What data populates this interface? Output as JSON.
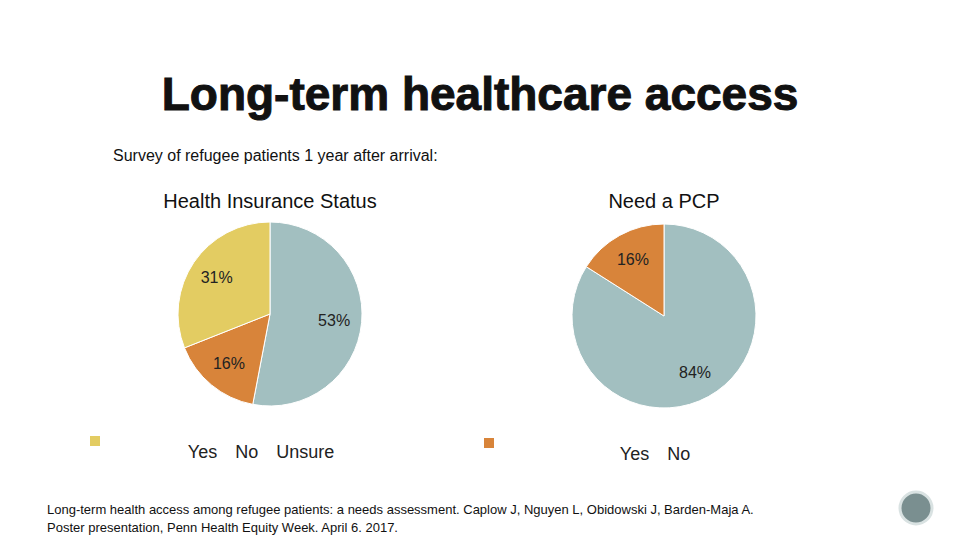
{
  "title": "Long-term healthcare access",
  "subtitle": "Survey of refugee patients 1 year after arrival:",
  "caption": [
    "Long-term health access among refugee patients: a needs assessment. Caplow J, Nguyen L, Obidowski J, Barden-Maja A.",
    "Poster presentation, Penn Health Equity Week. April 6. 2017."
  ],
  "chart_data": [
    {
      "type": "pie",
      "title": "Health Insurance Status",
      "categories": [
        "Yes",
        "No",
        "Unsure"
      ],
      "values": [
        53,
        16,
        31
      ],
      "value_labels": [
        "53%",
        "16%",
        "31%"
      ],
      "colors": [
        "#a2bfc0",
        "#d8843a",
        "#e3cc62"
      ],
      "data_labels": true,
      "legend": "bottom"
    },
    {
      "type": "pie",
      "title": "Need a PCP",
      "categories": [
        "Yes",
        "No"
      ],
      "values": [
        84,
        16
      ],
      "value_labels": [
        "84%",
        "16%"
      ],
      "colors": [
        "#a2bfc0",
        "#d8843a"
      ],
      "data_labels": true,
      "legend": "bottom"
    }
  ]
}
